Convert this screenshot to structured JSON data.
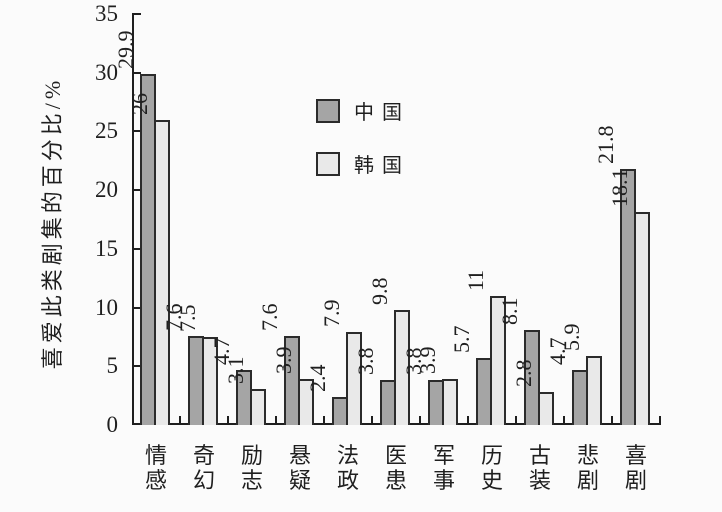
{
  "background": "#fbfbfb",
  "colors": {
    "china_bar": "#a5a5a5",
    "korea_bar": "#e9e9e9",
    "bar_border": "#2b2b2b",
    "axis": "#1f1f1f",
    "text": "#1f1f1f"
  },
  "chart_data": {
    "type": "bar",
    "title": "",
    "xlabel": "",
    "ylabel": "喜爱此类剧集的百分比/%",
    "ylim": [
      0,
      35
    ],
    "yticks": [
      0,
      5,
      10,
      15,
      20,
      25,
      30,
      35
    ],
    "grid": false,
    "legend_position": "inside-upper-left-of-plot",
    "categories": [
      "情感",
      "奇幻",
      "励志",
      "悬疑",
      "法政",
      "医患",
      "军事",
      "历史",
      "古装",
      "悲剧",
      "喜剧"
    ],
    "series": [
      {
        "name": "中国",
        "values": [
          29.9,
          7.6,
          4.7,
          7.6,
          2.4,
          3.8,
          3.8,
          5.7,
          8.1,
          4.7,
          21.8
        ]
      },
      {
        "name": "韩国",
        "values": [
          26,
          7.5,
          3.1,
          3.9,
          7.9,
          9.8,
          3.9,
          11,
          2.8,
          5.9,
          18.1
        ]
      }
    ],
    "value_labels_rotated": true
  }
}
